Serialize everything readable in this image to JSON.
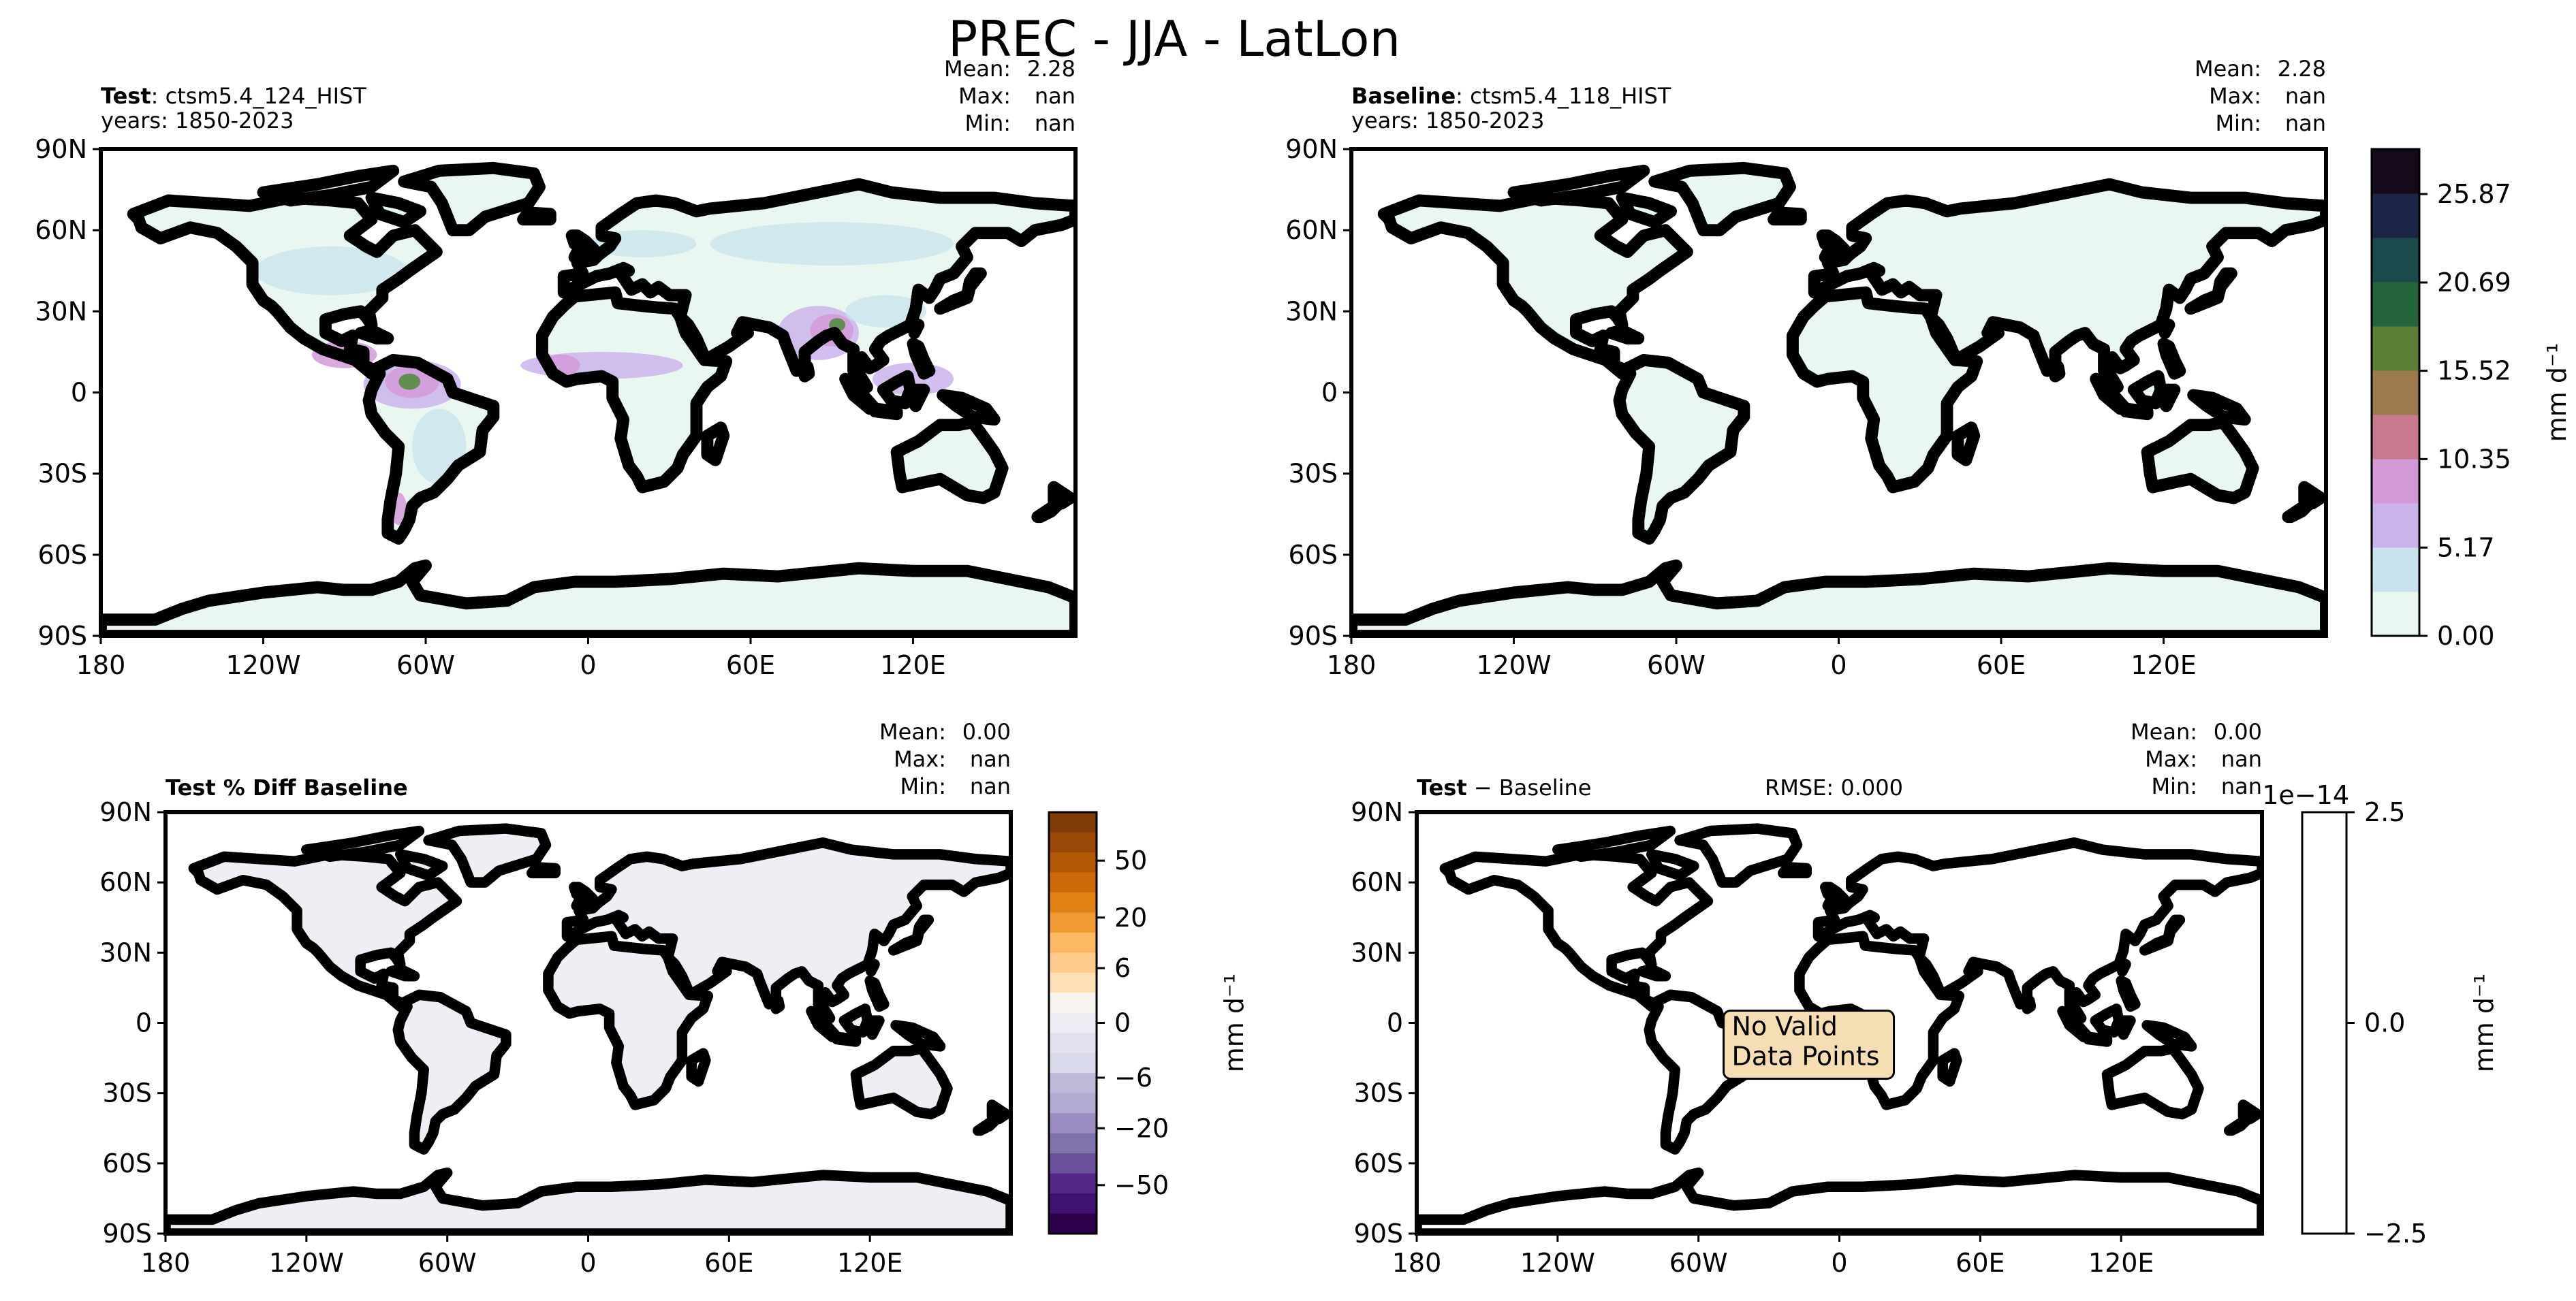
{
  "figure": {
    "title": "PREC - JJA - LatLon"
  },
  "chart_data": [
    {
      "type": "heatmap",
      "id": "test",
      "title_bold": "Test",
      "title_rest": ": ctsm5.4_124_HIST",
      "years": "years: 1850-2023",
      "stats": [
        [
          "Mean:",
          "2.28"
        ],
        [
          "Max:",
          "nan"
        ],
        [
          "Min:",
          "nan"
        ]
      ],
      "xticks": [
        "180",
        "120W",
        "60W",
        "0",
        "60E",
        "120E"
      ],
      "yticks": [
        "90N",
        "60N",
        "30N",
        "0",
        "30S",
        "60S",
        "90S"
      ],
      "xlim": [
        -180,
        180
      ],
      "ylim": [
        -90,
        90
      ],
      "fill": "#eaf6f0",
      "hotspots": [
        {
          "lon": -65,
          "lat": 3,
          "rx": 18,
          "ry": 9,
          "color": "#cbb4ec"
        },
        {
          "lon": -65,
          "lat": 4,
          "rx": 10,
          "ry": 6,
          "color": "#d49ad8"
        },
        {
          "lon": -66,
          "lat": 4,
          "rx": 4,
          "ry": 3,
          "color": "#4f8a3a"
        },
        {
          "lon": -90,
          "lat": 14,
          "rx": 12,
          "ry": 5,
          "color": "#d49ad8"
        },
        {
          "lon": 5,
          "lat": 10,
          "rx": 30,
          "ry": 5,
          "color": "#cbb4ec"
        },
        {
          "lon": -10,
          "lat": 10,
          "rx": 7,
          "ry": 4,
          "color": "#d49ad8"
        },
        {
          "lon": 85,
          "lat": 22,
          "rx": 15,
          "ry": 10,
          "color": "#cbb4ec"
        },
        {
          "lon": 90,
          "lat": 23,
          "rx": 8,
          "ry": 6,
          "color": "#d49ad8"
        },
        {
          "lon": 92,
          "lat": 25,
          "rx": 3,
          "ry": 2.5,
          "color": "#4f8a3a"
        },
        {
          "lon": 120,
          "lat": 5,
          "rx": 15,
          "ry": 6,
          "color": "#cbb4ec"
        },
        {
          "lon": -70,
          "lat": -43,
          "rx": 3,
          "ry": 6,
          "color": "#d49ad8"
        }
      ],
      "colorbar": {
        "label": "mm d⁻¹",
        "ticks": [
          "0.00",
          "5.17",
          "10.35",
          "15.52",
          "20.69",
          "25.87"
        ],
        "tick_values": [
          0,
          5.17,
          10.35,
          15.52,
          20.69,
          25.87
        ],
        "vmin": 0,
        "vmax": 28.5,
        "colors": [
          "#eaf6f0",
          "#c9e3ef",
          "#cbb4ec",
          "#d49ad8",
          "#c97a8e",
          "#9d7a4d",
          "#5c7e37",
          "#24653c",
          "#1a4a4c",
          "#1b2546",
          "#140a19"
        ]
      }
    },
    {
      "type": "heatmap",
      "id": "baseline",
      "title_bold": "Baseline",
      "title_rest": ": ctsm5.4_118_HIST",
      "years": "years: 1850-2023",
      "stats": [
        [
          "Mean:",
          "2.28"
        ],
        [
          "Max:",
          "nan"
        ],
        [
          "Min:",
          "nan"
        ]
      ],
      "xticks": [
        "180",
        "120W",
        "60W",
        "0",
        "60E",
        "120E"
      ],
      "yticks": [
        "90N",
        "60N",
        "30N",
        "0",
        "30S",
        "60S",
        "90S"
      ],
      "xlim": [
        -180,
        180
      ],
      "ylim": [
        -90,
        90
      ],
      "fill": "#eaf6f0"
    },
    {
      "type": "heatmap",
      "id": "pctdiff",
      "title_bold": "Test % Diff Baseline",
      "stats": [
        [
          "Mean:",
          "0.00"
        ],
        [
          "Max:",
          "nan"
        ],
        [
          "Min:",
          "nan"
        ]
      ],
      "xticks": [
        "180",
        "120W",
        "60W",
        "0",
        "60E",
        "120E"
      ],
      "yticks": [
        "90N",
        "60N",
        "30N",
        "0",
        "30S",
        "60S",
        "90S"
      ],
      "xlim": [
        -180,
        180
      ],
      "ylim": [
        -90,
        90
      ],
      "fill": "#eeeef4",
      "colorbar": {
        "label": "mm d⁻¹",
        "ticks": [
          "50",
          "20",
          "6",
          "0",
          "−6",
          "−20",
          "−50"
        ],
        "colors_top_to_bottom": [
          "#7f3b08",
          "#9a4807",
          "#b35806",
          "#cc6a0a",
          "#e08214",
          "#f09a33",
          "#fdb863",
          "#fdcb8a",
          "#fee0b6",
          "#f7f4f0",
          "#eeeef4",
          "#e2e0ee",
          "#d8daeb",
          "#bfbada",
          "#b2abd2",
          "#9a8cc0",
          "#8073ac",
          "#6a4f9a",
          "#542788",
          "#3f1170",
          "#2d004b"
        ]
      }
    },
    {
      "type": "heatmap",
      "id": "diff",
      "title_bold": "Test",
      "title_rest": " − Baseline",
      "rmse": "RMSE: 0.000",
      "stats": [
        [
          "Mean:",
          "0.00"
        ],
        [
          "Max:",
          "nan"
        ],
        [
          "Min:",
          "nan"
        ]
      ],
      "xticks": [
        "180",
        "120W",
        "60W",
        "0",
        "60E",
        "120E"
      ],
      "yticks": [
        "90N",
        "60N",
        "30N",
        "0",
        "30S",
        "60S",
        "90S"
      ],
      "xlim": [
        -180,
        180
      ],
      "ylim": [
        -90,
        90
      ],
      "fill": "#ffffff",
      "annotation": [
        "No Valid",
        "Data Points"
      ],
      "colorbar": {
        "label": "mm d⁻¹",
        "offset": "1e−14",
        "ticks": [
          "2.5",
          "0.0",
          "−2.5"
        ]
      }
    }
  ]
}
